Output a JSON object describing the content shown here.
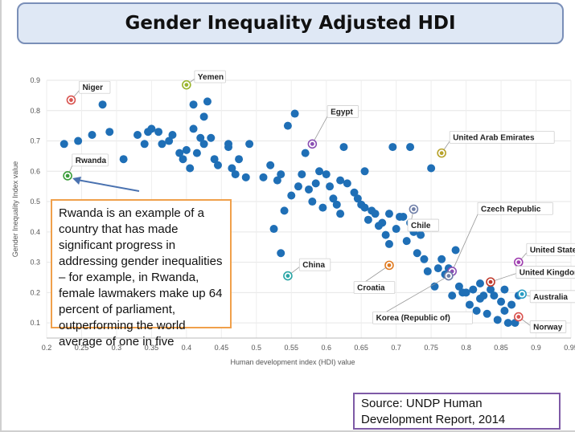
{
  "title": "Gender Inequality Adjusted HDI",
  "callout": "Rwanda is an example of a country that has made significant progress in addressing gender inequalities – for example, in Rwanda, female lawmakers make up 64 percent of parliament, outperforming the world average of one in five",
  "source": "Source: UNDP Human Development Report, 2014",
  "colors": {
    "dots": "#1f6fb6",
    "title_bg": "#dfe8f5",
    "callout_border": "#f0a04b",
    "source_border": "#7e5aa6"
  },
  "chart_data": {
    "type": "scatter",
    "title": "Gender Inequality Adjusted HDI",
    "xlabel": "Human development index (HDI) value",
    "ylabel": "Gender Inequality Index value",
    "xlim": [
      0.2,
      0.95
    ],
    "ylim": [
      0.05,
      0.9
    ],
    "xticks": [
      0.2,
      0.25,
      0.3,
      0.35,
      0.4,
      0.45,
      0.5,
      0.55,
      0.6,
      0.65,
      0.7,
      0.75,
      0.8,
      0.85,
      0.9,
      0.95
    ],
    "yticks": [
      0.1,
      0.2,
      0.3,
      0.4,
      0.5,
      0.6,
      0.7,
      0.8,
      0.9
    ],
    "grid": true,
    "points": [
      [
        0.225,
        0.69
      ],
      [
        0.245,
        0.7
      ],
      [
        0.265,
        0.72
      ],
      [
        0.28,
        0.82
      ],
      [
        0.29,
        0.73
      ],
      [
        0.31,
        0.64
      ],
      [
        0.33,
        0.72
      ],
      [
        0.34,
        0.69
      ],
      [
        0.345,
        0.73
      ],
      [
        0.35,
        0.74
      ],
      [
        0.36,
        0.73
      ],
      [
        0.365,
        0.69
      ],
      [
        0.375,
        0.7
      ],
      [
        0.38,
        0.72
      ],
      [
        0.39,
        0.66
      ],
      [
        0.395,
        0.64
      ],
      [
        0.4,
        0.67
      ],
      [
        0.405,
        0.61
      ],
      [
        0.41,
        0.74
      ],
      [
        0.41,
        0.82
      ],
      [
        0.415,
        0.66
      ],
      [
        0.42,
        0.71
      ],
      [
        0.425,
        0.69
      ],
      [
        0.425,
        0.78
      ],
      [
        0.43,
        0.83
      ],
      [
        0.435,
        0.71
      ],
      [
        0.44,
        0.64
      ],
      [
        0.445,
        0.62
      ],
      [
        0.46,
        0.68
      ],
      [
        0.46,
        0.69
      ],
      [
        0.465,
        0.61
      ],
      [
        0.47,
        0.59
      ],
      [
        0.475,
        0.64
      ],
      [
        0.485,
        0.58
      ],
      [
        0.49,
        0.69
      ],
      [
        0.51,
        0.58
      ],
      [
        0.52,
        0.62
      ],
      [
        0.525,
        0.41
      ],
      [
        0.53,
        0.57
      ],
      [
        0.535,
        0.59
      ],
      [
        0.535,
        0.33
      ],
      [
        0.54,
        0.47
      ],
      [
        0.545,
        0.75
      ],
      [
        0.55,
        0.52
      ],
      [
        0.555,
        0.79
      ],
      [
        0.56,
        0.55
      ],
      [
        0.565,
        0.59
      ],
      [
        0.57,
        0.66
      ],
      [
        0.575,
        0.54
      ],
      [
        0.58,
        0.5
      ],
      [
        0.585,
        0.56
      ],
      [
        0.59,
        0.6
      ],
      [
        0.595,
        0.48
      ],
      [
        0.6,
        0.59
      ],
      [
        0.605,
        0.55
      ],
      [
        0.61,
        0.51
      ],
      [
        0.615,
        0.49
      ],
      [
        0.62,
        0.57
      ],
      [
        0.62,
        0.46
      ],
      [
        0.625,
        0.68
      ],
      [
        0.63,
        0.56
      ],
      [
        0.64,
        0.53
      ],
      [
        0.645,
        0.51
      ],
      [
        0.65,
        0.49
      ],
      [
        0.655,
        0.48
      ],
      [
        0.655,
        0.6
      ],
      [
        0.66,
        0.44
      ],
      [
        0.665,
        0.47
      ],
      [
        0.67,
        0.46
      ],
      [
        0.675,
        0.42
      ],
      [
        0.68,
        0.43
      ],
      [
        0.685,
        0.39
      ],
      [
        0.69,
        0.36
      ],
      [
        0.69,
        0.46
      ],
      [
        0.695,
        0.68
      ],
      [
        0.7,
        0.41
      ],
      [
        0.705,
        0.45
      ],
      [
        0.71,
        0.45
      ],
      [
        0.715,
        0.37
      ],
      [
        0.72,
        0.68
      ],
      [
        0.72,
        0.43
      ],
      [
        0.725,
        0.4
      ],
      [
        0.73,
        0.33
      ],
      [
        0.735,
        0.39
      ],
      [
        0.74,
        0.31
      ],
      [
        0.745,
        0.27
      ],
      [
        0.75,
        0.61
      ],
      [
        0.755,
        0.22
      ],
      [
        0.76,
        0.28
      ],
      [
        0.765,
        0.31
      ],
      [
        0.77,
        0.26
      ],
      [
        0.775,
        0.28
      ],
      [
        0.78,
        0.19
      ],
      [
        0.785,
        0.34
      ],
      [
        0.79,
        0.22
      ],
      [
        0.795,
        0.2
      ],
      [
        0.8,
        0.2
      ],
      [
        0.805,
        0.16
      ],
      [
        0.81,
        0.21
      ],
      [
        0.815,
        0.14
      ],
      [
        0.82,
        0.23
      ],
      [
        0.82,
        0.18
      ],
      [
        0.825,
        0.19
      ],
      [
        0.83,
        0.13
      ],
      [
        0.835,
        0.21
      ],
      [
        0.84,
        0.19
      ],
      [
        0.845,
        0.11
      ],
      [
        0.85,
        0.17
      ],
      [
        0.855,
        0.14
      ],
      [
        0.855,
        0.21
      ],
      [
        0.86,
        0.1
      ],
      [
        0.865,
        0.16
      ],
      [
        0.87,
        0.1
      ],
      [
        0.875,
        0.19
      ]
    ],
    "labeled": [
      {
        "name": "Niger",
        "x": 0.235,
        "y": 0.835,
        "color": "#d9534f",
        "lx": 0.25,
        "ly": 0.865
      },
      {
        "name": "Yemen",
        "x": 0.4,
        "y": 0.885,
        "color": "#9ab52d",
        "lx": 0.415,
        "ly": 0.9
      },
      {
        "name": "Egypt",
        "x": 0.58,
        "y": 0.69,
        "color": "#8a4fb3",
        "lx": 0.605,
        "ly": 0.785
      },
      {
        "name": "United Arab Emirates",
        "x": 0.765,
        "y": 0.66,
        "color": "#b7a22a",
        "lx": 0.78,
        "ly": 0.7
      },
      {
        "name": "Rwanda",
        "x": 0.23,
        "y": 0.585,
        "color": "#3a9d3a",
        "lx": 0.24,
        "ly": 0.625
      },
      {
        "name": "Chile",
        "x": 0.725,
        "y": 0.475,
        "color": "#6f7fa8",
        "lx": 0.72,
        "ly": 0.41
      },
      {
        "name": "Czech Republic",
        "x": 0.78,
        "y": 0.27,
        "color": "#8a4fb3",
        "lx": 0.82,
        "ly": 0.465
      },
      {
        "name": "China",
        "x": 0.545,
        "y": 0.255,
        "color": "#2aa6a6",
        "lx": 0.565,
        "ly": 0.28
      },
      {
        "name": "Croatia",
        "x": 0.69,
        "y": 0.29,
        "color": "#e07b22",
        "lx": 0.643,
        "ly": 0.205
      },
      {
        "name": "United States",
        "x": 0.875,
        "y": 0.3,
        "color": "#a03fb0",
        "lx": 0.89,
        "ly": 0.33
      },
      {
        "name": "United Kingdom",
        "x": 0.835,
        "y": 0.235,
        "color": "#c0392b",
        "lx": 0.875,
        "ly": 0.255
      },
      {
        "name": "Korea (Republic of)",
        "x": 0.775,
        "y": 0.255,
        "color": "#6f7fa8",
        "lx": 0.67,
        "ly": 0.105
      },
      {
        "name": "Australia",
        "x": 0.88,
        "y": 0.195,
        "color": "#2a9dc4",
        "lx": 0.895,
        "ly": 0.175
      },
      {
        "name": "Norway",
        "x": 0.875,
        "y": 0.12,
        "color": "#d9534f",
        "lx": 0.895,
        "ly": 0.075
      }
    ]
  }
}
